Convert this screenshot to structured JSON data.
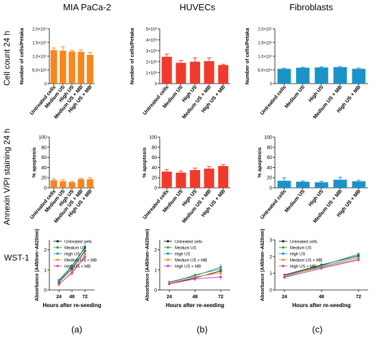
{
  "figure": {
    "col_titles": [
      "MIA PaCa-2",
      "HUVECs",
      "Fibroblasts"
    ],
    "row_labels": [
      "Cell count 24 h",
      "Annexin V/PI staining 24 h",
      "WST-1"
    ],
    "panel_labels": [
      "(a)",
      "(b)",
      "(c)"
    ],
    "bar_categories": [
      "Untreated cells",
      "Medium US",
      "High US",
      "Medium US + MB",
      "High US + MB"
    ],
    "colors": {
      "orange": "#f7861c",
      "red": "#f03a2e",
      "blue": "#1b93c9"
    },
    "line_series": [
      {
        "name": "Untreated cells",
        "color": "#222222",
        "marker": "circle"
      },
      {
        "name": "Medium US",
        "color": "#27a640",
        "marker": "square"
      },
      {
        "name": "High US",
        "color": "#2a8fc6",
        "marker": "triangle"
      },
      {
        "name": "Medium US + MB",
        "color": "#ff8a1f",
        "marker": "diamond"
      },
      {
        "name": "High US + MB",
        "color": "#c040c0",
        "marker": "plus"
      }
    ]
  },
  "chart_data": [
    {
      "type": "bar",
      "row": 0,
      "col": 0,
      "ylabel": "Number of cells/Petaka",
      "ylim": [
        0,
        20000000
      ],
      "ticks": [
        0,
        5000000,
        10000000,
        15000000,
        20000000
      ],
      "tick_labels": [
        "0",
        "5.0×10⁶",
        "1.0×10⁷",
        "1.5×10⁷",
        "2.0×10⁷"
      ],
      "values": [
        12200000,
        12000000,
        11700000,
        11600000,
        10500000
      ],
      "errors": [
        800000,
        1500000,
        400000,
        700000,
        900000
      ],
      "color": "#f7861c"
    },
    {
      "type": "bar",
      "row": 0,
      "col": 1,
      "ylabel": "Number of cells/Petaka",
      "ylim": [
        0,
        5000000
      ],
      "ticks": [
        0,
        1000000,
        2000000,
        3000000,
        4000000,
        5000000
      ],
      "tick_labels": [
        "0",
        "1×10⁶",
        "2×10⁶",
        "3×10⁶",
        "4×10⁶",
        "5×10⁶"
      ],
      "values": [
        2450000,
        1900000,
        2000000,
        2050000,
        1700000
      ],
      "errors": [
        250000,
        200000,
        350000,
        300000,
        60000
      ],
      "color": "#f03a2e"
    },
    {
      "type": "bar",
      "row": 0,
      "col": 2,
      "ylabel": "Number of cells/Petaka",
      "ylim": [
        0,
        20000000
      ],
      "ticks": [
        0,
        5000000,
        10000000,
        15000000,
        20000000
      ],
      "tick_labels": [
        "0",
        "5.0×10⁶",
        "1.0×10⁷",
        "1.5×10⁷",
        "2.0×10⁷"
      ],
      "values": [
        5400000,
        5800000,
        5900000,
        6000000,
        5400000
      ],
      "errors": [
        250000,
        200000,
        200000,
        300000,
        300000
      ],
      "color": "#1b93c9"
    },
    {
      "type": "bar",
      "row": 1,
      "col": 0,
      "ylabel": "% apoptosis",
      "ylim": [
        0,
        100
      ],
      "ticks": [
        0,
        20,
        40,
        60,
        80,
        100
      ],
      "tick_labels": [
        "0",
        "20",
        "40",
        "60",
        "80",
        "100"
      ],
      "values": [
        15,
        13,
        11,
        17,
        17
      ],
      "errors": [
        2.5,
        3,
        1.5,
        2,
        3
      ],
      "color": "#f7861c"
    },
    {
      "type": "bar",
      "row": 1,
      "col": 1,
      "ylabel": "% apoptosis",
      "ylim": [
        0,
        100
      ],
      "ticks": [
        0,
        20,
        40,
        60,
        80,
        100
      ],
      "tick_labels": [
        "0",
        "20",
        "40",
        "60",
        "80",
        "100"
      ],
      "values": [
        32,
        30,
        35,
        38,
        43
      ],
      "errors": [
        4,
        3,
        4,
        4,
        3
      ],
      "color": "#f03a2e"
    },
    {
      "type": "bar",
      "row": 1,
      "col": 2,
      "ylabel": "% apoptosis",
      "ylim": [
        0,
        100
      ],
      "ticks": [
        0,
        20,
        40,
        60,
        80,
        100
      ],
      "tick_labels": [
        "0",
        "20",
        "40",
        "60",
        "80",
        "100"
      ],
      "values": [
        14,
        12,
        11,
        16,
        13
      ],
      "errors": [
        6,
        1.5,
        2,
        5,
        2
      ],
      "color": "#1b93c9"
    },
    {
      "type": "line",
      "row": 2,
      "col": 0,
      "ylabel": "Absorbance (A450nm–A620nm)",
      "xlabel": "Hours after re-seeding",
      "x": [
        "24",
        "48",
        "72"
      ],
      "ylim": [
        0,
        2.5
      ],
      "ticks": [
        0,
        1,
        2
      ],
      "tick_labels": [
        "0",
        "1",
        "2"
      ],
      "series": [
        {
          "values": [
            0.4,
            1.05,
            1.95
          ],
          "errors": [
            0.05,
            0.1,
            0.15
          ]
        },
        {
          "values": [
            0.45,
            1.15,
            2.1
          ],
          "errors": [
            0.05,
            0.1,
            0.15
          ]
        },
        {
          "values": [
            0.5,
            1.2,
            2.15
          ],
          "errors": [
            0.05,
            0.1,
            0.25
          ]
        },
        {
          "values": [
            0.25,
            0.9,
            1.8
          ],
          "errors": [
            0.05,
            0.15,
            0.2
          ]
        },
        {
          "values": [
            0.3,
            0.85,
            1.65
          ],
          "errors": [
            0.05,
            0.15,
            0.2
          ]
        }
      ]
    },
    {
      "type": "line",
      "row": 2,
      "col": 1,
      "ylabel": "Absorbance (A450nm–A620nm)",
      "xlabel": "Hours after re-seeding",
      "x": [
        "24",
        "48",
        "72"
      ],
      "ylim": [
        0,
        2.5
      ],
      "ticks": [
        0,
        1,
        2
      ],
      "tick_labels": [
        "0",
        "1",
        "2"
      ],
      "series": [
        {
          "values": [
            0.3,
            0.6,
            0.95
          ],
          "errors": [
            0.05,
            0.05,
            0.1
          ]
        },
        {
          "values": [
            0.35,
            0.75,
            1.05
          ],
          "errors": [
            0.05,
            0.05,
            0.1
          ]
        },
        {
          "values": [
            0.4,
            0.7,
            1.15
          ],
          "errors": [
            0.05,
            0.1,
            0.15
          ]
        },
        {
          "values": [
            0.35,
            0.65,
            0.85
          ],
          "errors": [
            0.05,
            0.1,
            0.1
          ]
        },
        {
          "values": [
            0.3,
            0.55,
            0.65
          ],
          "errors": [
            0.05,
            0.1,
            0.15
          ]
        }
      ]
    },
    {
      "type": "line",
      "row": 2,
      "col": 2,
      "ylabel": "Absorbance (A450nm–A620nm)",
      "xlabel": "Hours after re-seeding",
      "x": [
        "24",
        "48",
        "72"
      ],
      "ylim": [
        0,
        3.0
      ],
      "ticks": [
        0,
        1,
        2,
        3
      ],
      "tick_labels": [
        "0",
        "1",
        "2",
        "3"
      ],
      "series": [
        {
          "values": [
            0.9,
            1.5,
            2.05
          ],
          "errors": [
            0.05,
            0.1,
            0.1
          ]
        },
        {
          "values": [
            0.85,
            1.45,
            2.15
          ],
          "errors": [
            0.05,
            0.1,
            0.1
          ]
        },
        {
          "values": [
            0.8,
            1.4,
            1.95
          ],
          "errors": [
            0.05,
            0.1,
            0.1
          ]
        },
        {
          "values": [
            0.85,
            1.35,
            1.85
          ],
          "errors": [
            0.05,
            0.1,
            0.1
          ]
        },
        {
          "values": [
            0.75,
            1.3,
            1.8
          ],
          "errors": [
            0.05,
            0.1,
            0.1
          ]
        }
      ]
    }
  ]
}
